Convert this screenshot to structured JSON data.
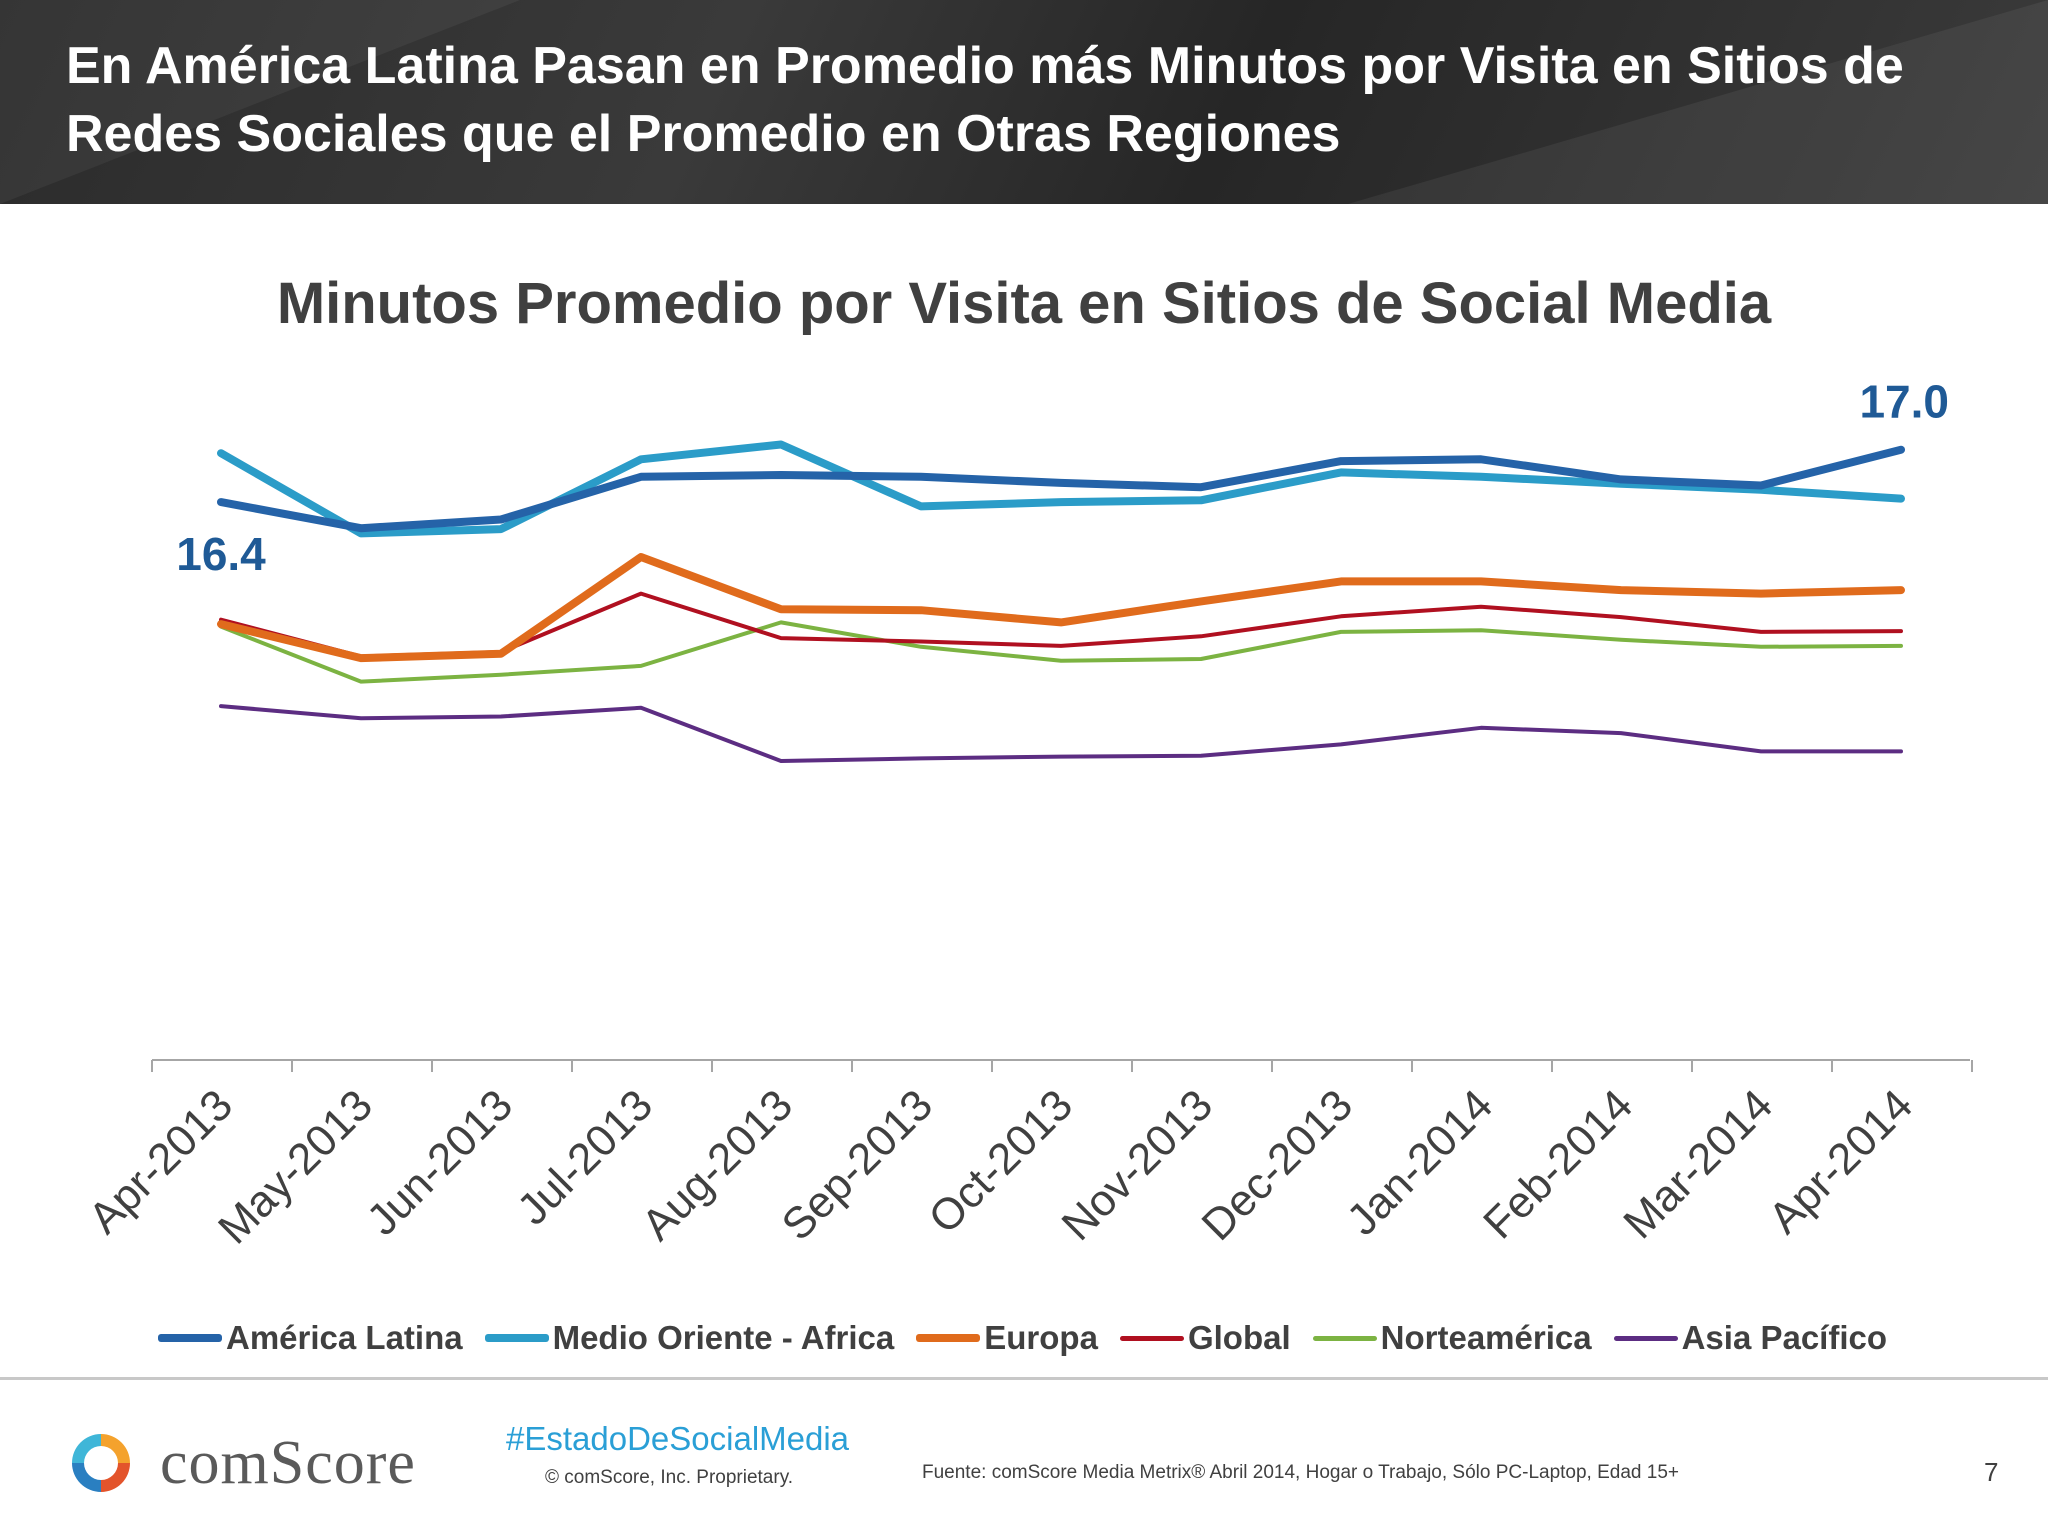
{
  "header": {
    "title": "En América Latina Pasan en Promedio más Minutos por Visita en Sitios de Redes Sociales que el Promedio en Otras Regiones"
  },
  "chart_data": {
    "type": "line",
    "title": "Minutos Promedio por Visita en Sitios de Social Media",
    "xlabel": "",
    "ylabel": "",
    "ylim": [
      10.0,
      17.8
    ],
    "grid": false,
    "legend_position": "bottom",
    "categories": [
      "Apr-2013",
      "May-2013",
      "Jun-2013",
      "Jul-2013",
      "Aug-2013",
      "Sep-2013",
      "Oct-2013",
      "Nov-2013",
      "Dec-2013",
      "Jan-2014",
      "Feb-2014",
      "Mar-2014",
      "Apr-2014"
    ],
    "series": [
      {
        "name": "América Latina",
        "color": "#2563a8",
        "width": 8,
        "values": [
          16.4,
          16.1,
          16.2,
          16.69,
          16.71,
          16.69,
          16.62,
          16.57,
          16.87,
          16.89,
          16.66,
          16.59,
          17.0
        ]
      },
      {
        "name": "Medio Oriente - Africa",
        "color": "#2b9cc8",
        "width": 8,
        "values": [
          16.96,
          16.04,
          16.09,
          16.89,
          17.06,
          16.35,
          16.4,
          16.42,
          16.74,
          16.69,
          16.61,
          16.54,
          16.44
        ]
      },
      {
        "name": "Europa",
        "color": "#e06b1c",
        "width": 8,
        "values": [
          15.0,
          14.61,
          14.66,
          15.77,
          15.17,
          15.16,
          15.02,
          15.26,
          15.49,
          15.49,
          15.39,
          15.35,
          15.39
        ]
      },
      {
        "name": "Global",
        "color": "#b01020",
        "width": 4,
        "values": [
          15.05,
          14.63,
          14.68,
          15.35,
          14.84,
          14.8,
          14.75,
          14.86,
          15.09,
          15.2,
          15.08,
          14.91,
          14.92
        ]
      },
      {
        "name": "Norteamérica",
        "color": "#7cb342",
        "width": 4,
        "values": [
          14.97,
          14.34,
          14.42,
          14.52,
          15.02,
          14.74,
          14.58,
          14.6,
          14.91,
          14.93,
          14.82,
          14.74,
          14.75
        ]
      },
      {
        "name": "Asia Pacífico",
        "color": "#5c2d82",
        "width": 4,
        "values": [
          14.06,
          13.92,
          13.94,
          14.04,
          13.43,
          13.46,
          13.48,
          13.49,
          13.62,
          13.81,
          13.75,
          13.54,
          13.54
        ]
      }
    ],
    "data_labels": [
      {
        "series": "América Latina",
        "category": "Apr-2013",
        "text": "16.4"
      },
      {
        "series": "América Latina",
        "category": "Apr-2014",
        "text": "17.0"
      }
    ]
  },
  "footer": {
    "brand": "comScore",
    "hashtag": "#EstadoDeSocialMedia",
    "copyright": "© comScore, Inc.    Proprietary.",
    "source": "Fuente: comScore Media Metrix® Abril 2014, Hogar o Trabajo, Sólo PC-Laptop, Edad 15+",
    "page_number": "7"
  },
  "colors": {
    "header_bg": "#2e2e2e",
    "text_dark": "#404040",
    "label_blue": "#1f5a96",
    "hashtag_blue": "#2a9fd6"
  }
}
